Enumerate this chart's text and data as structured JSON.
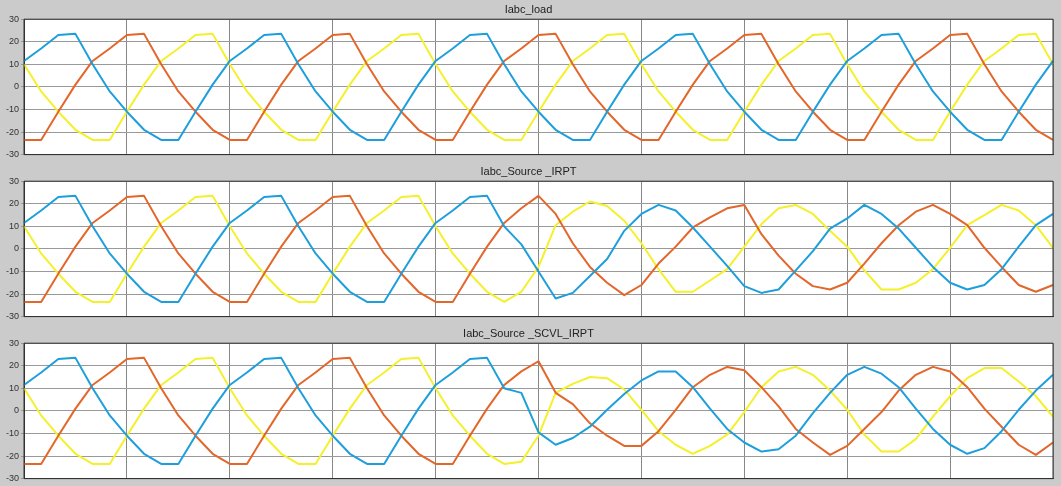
{
  "chart_data": [
    {
      "type": "line",
      "title": "Iabc_load",
      "categories": [
        null,
        null,
        null,
        null,
        null,
        null,
        null,
        null,
        null,
        null,
        null,
        null,
        null,
        null,
        null,
        null,
        null,
        null,
        null,
        null,
        null,
        null,
        null,
        null,
        null,
        null,
        null,
        null,
        null,
        null,
        null,
        null,
        null,
        null,
        null,
        null,
        null,
        null,
        null,
        null,
        null,
        null,
        null,
        null,
        null,
        null,
        null,
        null,
        null,
        null,
        null,
        null,
        null,
        null,
        null,
        null,
        null,
        null,
        null,
        null,
        null
      ],
      "ylim": [
        -30,
        30
      ],
      "yticks": [
        -30,
        -20,
        -10,
        0,
        10,
        20,
        30
      ],
      "grid": true,
      "tick_labels": "y",
      "marker": "none",
      "series": [
        {
          "color": "#1e9fdc",
          "values": [
            11.5,
            17,
            23,
            23.5,
            10,
            -2,
            -11,
            -19,
            -23.5,
            -23.5,
            -11,
            1,
            11.5,
            17,
            23,
            23.5,
            10,
            -2,
            -11,
            -19,
            -23.5,
            -23.5,
            -11,
            1,
            11.5,
            17,
            23,
            23.5,
            10,
            -2,
            -11,
            -19,
            -23.5,
            -23.5,
            -11,
            1,
            11.5,
            17,
            23,
            23.5,
            10,
            -2,
            -11,
            -19,
            -23.5,
            -23.5,
            -11,
            1,
            11.5,
            17,
            23,
            23.5,
            10,
            -2,
            -11,
            -19,
            -23.5,
            -23.5,
            -11,
            1,
            11.5
          ]
        },
        {
          "color": "#e3662b",
          "values": [
            -23.5,
            -23.5,
            -11,
            1,
            11.5,
            17,
            23,
            23.5,
            10,
            -2,
            -11,
            -19,
            -23.5,
            -23.5,
            -11,
            1,
            11.5,
            17,
            23,
            23.5,
            10,
            -2,
            -11,
            -19,
            -23.5,
            -23.5,
            -11,
            1,
            11.5,
            17,
            23,
            23.5,
            10,
            -2,
            -11,
            -19,
            -23.5,
            -23.5,
            -11,
            1,
            11.5,
            17,
            23,
            23.5,
            10,
            -2,
            -11,
            -19,
            -23.5,
            -23.5,
            -11,
            1,
            11.5,
            17,
            23,
            23.5,
            10,
            -2,
            -11,
            -19,
            -23.5
          ]
        },
        {
          "color": "#f4f02c",
          "values": [
            10,
            -2,
            -11,
            -19,
            -23.5,
            -23.5,
            -11,
            1,
            11.5,
            17,
            23,
            23.5,
            10,
            -2,
            -11,
            -19,
            -23.5,
            -23.5,
            -11,
            1,
            11.5,
            17,
            23,
            23.5,
            10,
            -2,
            -11,
            -19,
            -23.5,
            -23.5,
            -11,
            1,
            11.5,
            17,
            23,
            23.5,
            10,
            -2,
            -11,
            -19,
            -23.5,
            -23.5,
            -11,
            1,
            11.5,
            17,
            23,
            23.5,
            10,
            -2,
            -11,
            -19,
            -23.5,
            -23.5,
            -11,
            1,
            11.5,
            17,
            23,
            23.5,
            10
          ]
        }
      ]
    },
    {
      "type": "line",
      "title": "Iabc_Source _IRPT",
      "categories": [
        null,
        null,
        null,
        null,
        null,
        null,
        null,
        null,
        null,
        null,
        null,
        null,
        null,
        null,
        null,
        null,
        null,
        null,
        null,
        null,
        null,
        null,
        null,
        null,
        null,
        null,
        null,
        null,
        null,
        null,
        null,
        null,
        null,
        null,
        null,
        null,
        null,
        null,
        null,
        null,
        null,
        null,
        null,
        null,
        null,
        null,
        null,
        null,
        null,
        null,
        null,
        null,
        null,
        null,
        null,
        null,
        null,
        null,
        null,
        null,
        null
      ],
      "ylim": [
        -30,
        30
      ],
      "yticks": [
        -30,
        -20,
        -10,
        0,
        10,
        20,
        30
      ],
      "grid": true,
      "tick_labels": "y",
      "marker": "none",
      "series": [
        {
          "color": "#1e9fdc",
          "values": [
            11.5,
            17,
            23,
            23.5,
            10,
            -2,
            -11,
            -19,
            -23.5,
            -23.5,
            -11,
            1,
            11.5,
            17,
            23,
            23.5,
            10,
            -2,
            -11,
            -19,
            -23.5,
            -23.5,
            -11,
            1,
            11.5,
            17,
            23,
            23.5,
            10,
            2,
            -10,
            -22,
            -19.5,
            -12,
            -4.5,
            8,
            15.5,
            19.5,
            17,
            9.5,
            1,
            -7.5,
            -16.5,
            -19.5,
            -18,
            -9.5,
            -1,
            9,
            13.5,
            19.5,
            15.5,
            9,
            0.5,
            -8,
            -15,
            -18,
            -16,
            -9,
            1,
            10.5,
            15.5
          ]
        },
        {
          "color": "#e3662b",
          "values": [
            -23.5,
            -23.5,
            -11,
            1,
            11.5,
            17,
            23,
            23.5,
            10,
            -2,
            -11,
            -19,
            -23.5,
            -23.5,
            -11,
            1,
            11.5,
            17,
            23,
            23.5,
            10,
            -2,
            -11,
            -19,
            -23.5,
            -23.5,
            -11,
            1,
            11.5,
            18,
            23.5,
            15.5,
            2.5,
            -8,
            -15,
            -20.5,
            -16,
            -6.5,
            1,
            9.5,
            14,
            18,
            19.5,
            6.5,
            -3,
            -11,
            -16.5,
            -18,
            -15,
            -6.5,
            2.5,
            10.5,
            16.5,
            19.5,
            15.5,
            10.5,
            0.5,
            -8,
            -16,
            -19,
            -16
          ]
        },
        {
          "color": "#f4f02c",
          "values": [
            10,
            -2,
            -11,
            -19,
            -23.5,
            -23.5,
            -11,
            1,
            11.5,
            17,
            23,
            23.5,
            10,
            -2,
            -11,
            -19,
            -23.5,
            -23.5,
            -11,
            1,
            11.5,
            17,
            23,
            23.5,
            10,
            -2,
            -11,
            -19,
            -23.5,
            -19,
            -8,
            10.5,
            16.5,
            21,
            19,
            12.5,
            2.5,
            -9,
            -19,
            -19,
            -14,
            -9,
            1,
            11,
            18,
            19.5,
            15.5,
            8,
            1,
            -9.5,
            -18,
            -18,
            -15,
            -9,
            0.5,
            10.5,
            15,
            19.5,
            17,
            10.5,
            0.5
          ]
        }
      ]
    },
    {
      "type": "line",
      "title": "Iabc_Source _SCVL_IRPT",
      "categories": [
        null,
        null,
        null,
        null,
        null,
        null,
        null,
        null,
        null,
        null,
        null,
        null,
        null,
        null,
        null,
        null,
        null,
        null,
        null,
        null,
        null,
        null,
        null,
        null,
        null,
        null,
        null,
        null,
        null,
        null,
        null,
        null,
        null,
        null,
        null,
        null,
        null,
        null,
        null,
        null,
        null,
        null,
        null,
        null,
        null,
        null,
        null,
        null,
        null,
        null,
        null,
        null,
        null,
        null,
        null,
        null,
        null,
        null,
        null,
        null,
        null
      ],
      "ylim": [
        -30,
        30
      ],
      "yticks": [
        -30,
        -20,
        -10,
        0,
        10,
        20,
        30
      ],
      "grid": true,
      "tick_labels": "y",
      "marker": "none",
      "series": [
        {
          "color": "#1e9fdc",
          "values": [
            11.5,
            17,
            23,
            23.5,
            10,
            -2,
            -11,
            -19,
            -23.5,
            -23.5,
            -11,
            1,
            11.5,
            17,
            23,
            23.5,
            10,
            -2,
            -11,
            -19,
            -23.5,
            -23.5,
            -11,
            1,
            11.5,
            17,
            23,
            23.5,
            10,
            8,
            -9.5,
            -15,
            -12,
            -7,
            0.5,
            7.5,
            13.5,
            17.5,
            17.5,
            10.5,
            1,
            -8,
            -14,
            -18,
            -17,
            -11,
            -1,
            8,
            16,
            19.5,
            16.5,
            10.5,
            1,
            -8,
            -15,
            -19,
            -16.5,
            -9,
            0.5,
            9,
            16
          ]
        },
        {
          "color": "#e3662b",
          "values": [
            -23.5,
            -23.5,
            -11,
            1,
            11.5,
            17,
            23,
            23.5,
            10,
            -2,
            -11,
            -19,
            -23.5,
            -23.5,
            -11,
            1,
            11.5,
            17,
            23,
            23.5,
            10,
            -2,
            -11,
            -19,
            -23.5,
            -23.5,
            -11,
            1,
            11.5,
            17.5,
            22,
            8,
            3,
            -5.5,
            -11,
            -15.5,
            -15.5,
            -9,
            0.5,
            10.5,
            16,
            19.5,
            18,
            10.5,
            2,
            -8,
            -14,
            -19.5,
            -15.5,
            -8,
            -0.5,
            9,
            16,
            19.5,
            17.5,
            10.5,
            1,
            -7,
            -15,
            -19.5,
            -14
          ]
        },
        {
          "color": "#f4f02c",
          "values": [
            10,
            -2,
            -11,
            -19,
            -23.5,
            -23.5,
            -11,
            1,
            11.5,
            17,
            23,
            23.5,
            10,
            -2,
            -11,
            -19,
            -23.5,
            -23.5,
            -11,
            1,
            11.5,
            17,
            23,
            23.5,
            10,
            -2,
            -11,
            -19,
            -23.5,
            -22.5,
            -11,
            8,
            12,
            15,
            14.5,
            9.5,
            0.5,
            -9,
            -15,
            -19,
            -15.5,
            -10.5,
            -0.5,
            10.5,
            17.5,
            19.5,
            16,
            9,
            0.5,
            -10.5,
            -18,
            -18,
            -12.5,
            -2.5,
            6.5,
            14.5,
            19,
            19,
            13,
            6.5,
            -2.5
          ]
        }
      ]
    }
  ]
}
